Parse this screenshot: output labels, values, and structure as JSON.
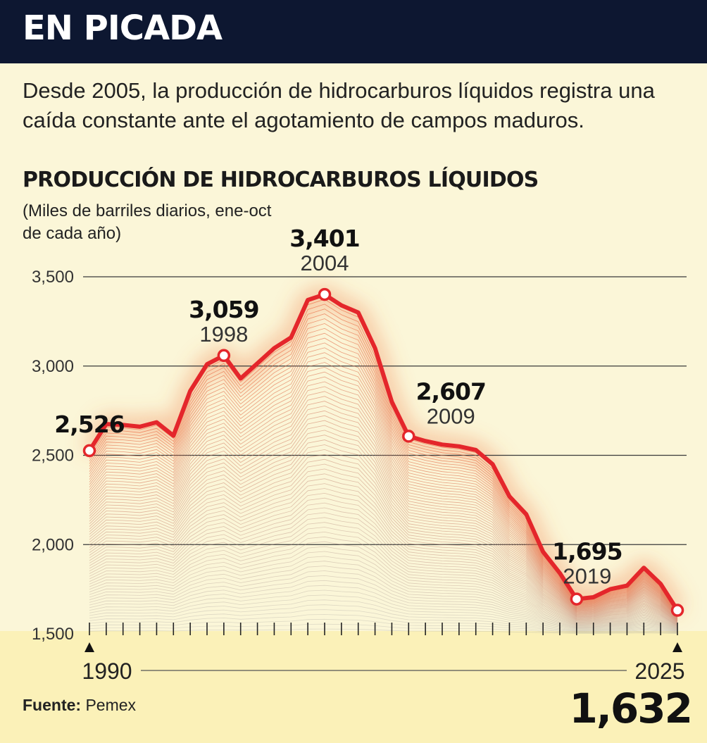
{
  "header": {
    "title": "EN PICADA"
  },
  "subtitle": "Desde 2005, la producción de hidrocarburos líquidos registra una caída constante ante el agotamiento de campos maduros.",
  "source": {
    "label": "Fuente:",
    "value": "Pemex"
  },
  "colors": {
    "line": "#e4262b",
    "header_bg": "#0d1731",
    "background": "#fbf6d8"
  },
  "chart_data": {
    "type": "area",
    "title": "PRODUCCIÓN DE HIDROCARBUROS LÍQUIDOS",
    "ylabel": "(Miles de barriles diarios, ene-oct de cada año)",
    "xlabel": "",
    "x": [
      1990,
      1991,
      1992,
      1993,
      1994,
      1995,
      1996,
      1997,
      1998,
      1999,
      2000,
      2001,
      2002,
      2003,
      2004,
      2005,
      2006,
      2007,
      2008,
      2009,
      2010,
      2011,
      2012,
      2013,
      2014,
      2015,
      2016,
      2017,
      2018,
      2019,
      2020,
      2021,
      2022,
      2023,
      2024,
      2025
    ],
    "series": [
      {
        "values": [
          2526,
          2675,
          2670,
          2660,
          2685,
          2610,
          2860,
          3010,
          3059,
          2930,
          3015,
          3100,
          3160,
          3370,
          3401,
          3340,
          3300,
          3100,
          2800,
          2607,
          2580,
          2560,
          2550,
          2530,
          2450,
          2270,
          2170,
          1960,
          1840,
          1695,
          1705,
          1750,
          1770,
          1870,
          1780,
          1632
        ]
      }
    ],
    "ylim": [
      1500,
      3500
    ],
    "yticks": [
      1500,
      2000,
      2500,
      3000,
      3500
    ],
    "ytick_labels": [
      "1,500",
      "2,000",
      "2,500",
      "3,000",
      "3,500"
    ],
    "x_start_label": "1990",
    "x_end_label": "2025",
    "end_value_label": "1,632",
    "grid": true,
    "annotations": [
      {
        "year": 1990,
        "year_label": "",
        "value_label": "2,526"
      },
      {
        "year": 1998,
        "year_label": "1998",
        "value_label": "3,059"
      },
      {
        "year": 2004,
        "year_label": "2004",
        "value_label": "3,401"
      },
      {
        "year": 2009,
        "year_label": "2009",
        "value_label": "2,607"
      },
      {
        "year": 2019,
        "year_label": "2019",
        "value_label": "1,695"
      },
      {
        "year": 2025,
        "year_label": "",
        "value_label": ""
      }
    ]
  }
}
